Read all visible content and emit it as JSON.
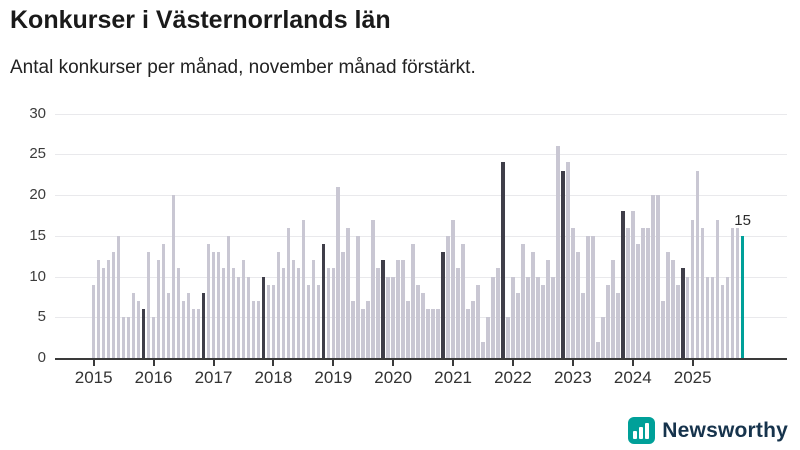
{
  "header": {
    "title": "Konkurser i Västernorrlands län",
    "subtitle": "Antal konkurser per månad, november månad förstärkt."
  },
  "chart_data": {
    "type": "bar",
    "title": "Konkurser i Västernorrlands län",
    "xlabel": "",
    "ylabel": "",
    "ylim": [
      0,
      30
    ],
    "yticks": [
      0,
      5,
      10,
      15,
      20,
      25,
      30
    ],
    "grid": true,
    "legend_position": "none",
    "start": {
      "year": 2015,
      "month": 1
    },
    "end": {
      "year": 2025,
      "month": 11
    },
    "x_tick_years": [
      "2015",
      "2016",
      "2017",
      "2018",
      "2019",
      "2020",
      "2021",
      "2022",
      "2023",
      "2024",
      "2025"
    ],
    "series": [
      {
        "name": "Antal konkurser per månad",
        "values": [
          9,
          12,
          11,
          12,
          13,
          15,
          5,
          5,
          8,
          7,
          6,
          13,
          5,
          12,
          14,
          8,
          20,
          11,
          7,
          8,
          6,
          6,
          8,
          14,
          13,
          13,
          11,
          15,
          11,
          10,
          12,
          10,
          7,
          7,
          10,
          9,
          9,
          13,
          11,
          16,
          12,
          11,
          17,
          9,
          12,
          9,
          14,
          11,
          11,
          21,
          13,
          16,
          7,
          15,
          6,
          7,
          17,
          11,
          12,
          10,
          10,
          12,
          12,
          7,
          14,
          9,
          8,
          6,
          6,
          6,
          13,
          15,
          17,
          11,
          14,
          6,
          7,
          9,
          2,
          5,
          10,
          11,
          24,
          5,
          10,
          8,
          14,
          10,
          13,
          10,
          9,
          12,
          10,
          26,
          23,
          24,
          16,
          13,
          8,
          15,
          15,
          2,
          5,
          9,
          12,
          8,
          18,
          16,
          18,
          14,
          16,
          16,
          20,
          20,
          7,
          13,
          12,
          9,
          11,
          10,
          17,
          23,
          16,
          10,
          10,
          17,
          9,
          10,
          16,
          16,
          15
        ]
      }
    ],
    "november_values": {
      "2015": 6,
      "2016": 8,
      "2017": 10,
      "2018": 14,
      "2019": 12,
      "2020": 13,
      "2021": 24,
      "2022": 23,
      "2023": 18,
      "2024": 11,
      "2025": 15
    },
    "emphasis": {
      "november": "dark",
      "latest_bar": "teal"
    },
    "annotation": {
      "text": "15",
      "target_index": 130
    },
    "colors": {
      "bar_default": "#c9c7d3",
      "bar_november": "#3f3e49",
      "bar_latest": "#00a099",
      "gridline": "#e9e9ec",
      "axis": "#3a3a3a",
      "tick_label": "#333333"
    }
  },
  "footer": {
    "brand": "Newsworthy",
    "brand_color": "#00a099"
  }
}
